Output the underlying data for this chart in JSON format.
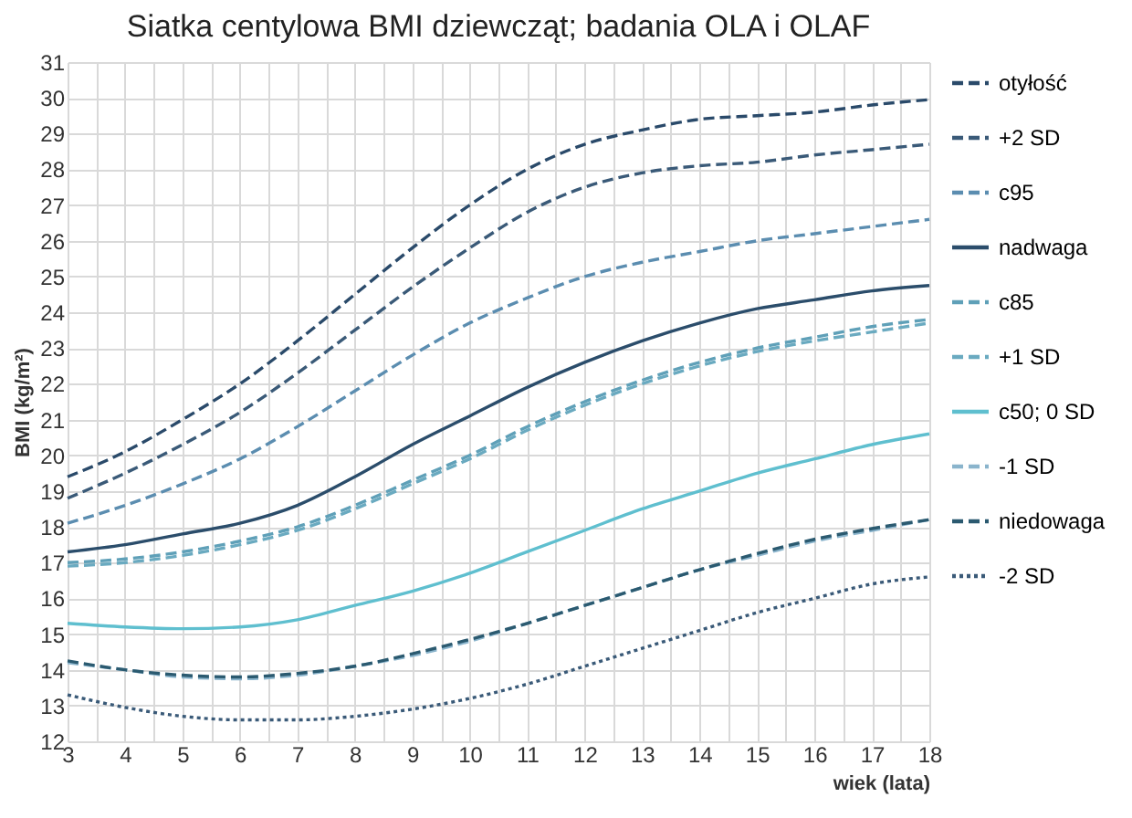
{
  "chart_data": {
    "type": "line",
    "title": "Siatka centylowa BMI dziewcząt; badania OLA i OLAF",
    "xlabel": "wiek (lata)",
    "ylabel": "BMI (kg/m²)",
    "x": [
      3,
      4,
      5,
      6,
      7,
      8,
      9,
      10,
      11,
      12,
      13,
      14,
      15,
      16,
      17,
      18
    ],
    "series": [
      {
        "name": "otyłość",
        "color": "#2a4a6a",
        "line_style": "dashed",
        "values": [
          19.4,
          20.1,
          21.0,
          22.0,
          23.2,
          24.5,
          25.8,
          27.0,
          28.0,
          28.7,
          29.1,
          29.4,
          29.5,
          29.6,
          29.8,
          29.95
        ]
      },
      {
        "name": "+2 SD",
        "color": "#3a5a78",
        "line_style": "dashed",
        "values": [
          18.8,
          19.5,
          20.3,
          21.2,
          22.3,
          23.5,
          24.7,
          25.8,
          26.8,
          27.5,
          27.9,
          28.1,
          28.2,
          28.4,
          28.55,
          28.7
        ]
      },
      {
        "name": "c95",
        "color": "#5b8db0",
        "line_style": "dashed",
        "values": [
          18.1,
          18.6,
          19.2,
          19.9,
          20.8,
          21.8,
          22.8,
          23.7,
          24.4,
          25.0,
          25.4,
          25.7,
          26.0,
          26.2,
          26.4,
          26.6
        ]
      },
      {
        "name": "nadwaga",
        "color": "#2b4d6b",
        "line_style": "solid",
        "values": [
          17.3,
          17.5,
          17.8,
          18.1,
          18.6,
          19.4,
          20.3,
          21.1,
          21.9,
          22.6,
          23.2,
          23.7,
          24.1,
          24.35,
          24.6,
          24.75
        ]
      },
      {
        "name": "c85",
        "color": "#5fa0b8",
        "line_style": "dashed",
        "values": [
          17.0,
          17.1,
          17.3,
          17.6,
          18.0,
          18.6,
          19.3,
          20.0,
          20.8,
          21.5,
          22.1,
          22.6,
          23.0,
          23.3,
          23.6,
          23.8
        ]
      },
      {
        "name": "+1 SD",
        "color": "#6aaac0",
        "line_style": "dashed",
        "values": [
          16.9,
          17.0,
          17.2,
          17.5,
          17.9,
          18.5,
          19.2,
          19.9,
          20.7,
          21.4,
          22.0,
          22.5,
          22.9,
          23.2,
          23.45,
          23.7
        ]
      },
      {
        "name": "c50; 0 SD",
        "color": "#5fbfcf",
        "line_style": "solid",
        "values": [
          15.3,
          15.2,
          15.15,
          15.2,
          15.4,
          15.8,
          16.2,
          16.7,
          17.3,
          17.9,
          18.5,
          19.0,
          19.5,
          19.9,
          20.3,
          20.6
        ]
      },
      {
        "name": "-1 SD",
        "color": "#8ab4cc",
        "line_style": "dashed",
        "values": [
          14.2,
          14.0,
          13.8,
          13.75,
          13.85,
          14.1,
          14.4,
          14.8,
          15.3,
          15.8,
          16.3,
          16.8,
          17.2,
          17.6,
          17.9,
          18.2
        ]
      },
      {
        "name": "niedowaga",
        "color": "#2b5a70",
        "line_style": "dashed",
        "values": [
          14.25,
          14.0,
          13.85,
          13.8,
          13.9,
          14.1,
          14.45,
          14.85,
          15.3,
          15.8,
          16.3,
          16.8,
          17.25,
          17.65,
          17.95,
          18.2
        ]
      },
      {
        "name": "-2 SD",
        "color": "#3a5a78",
        "line_style": "dotted",
        "values": [
          13.3,
          12.95,
          12.7,
          12.6,
          12.6,
          12.7,
          12.9,
          13.2,
          13.6,
          14.1,
          14.6,
          15.1,
          15.6,
          16.0,
          16.4,
          16.6
        ]
      }
    ],
    "xlim": [
      3,
      18
    ],
    "xticks": [
      3,
      {
        "value": 3.5,
        "label": null
      },
      4,
      {
        "value": 4.5,
        "label": null
      },
      5,
      {
        "value": 5.5,
        "label": null
      },
      6,
      {
        "value": 6.5,
        "label": null
      },
      7,
      {
        "value": 7.5,
        "label": null
      },
      8,
      {
        "value": 8.5,
        "label": null
      },
      9,
      {
        "value": 9.5,
        "label": null
      },
      10,
      {
        "value": 10.5,
        "label": null
      },
      11,
      {
        "value": 11.5,
        "label": null
      },
      12,
      {
        "value": 12.5,
        "label": null
      },
      13,
      {
        "value": 13.5,
        "label": null
      },
      14,
      {
        "value": 14.5,
        "label": null
      },
      15,
      {
        "value": 15.5,
        "label": null
      },
      16,
      {
        "value": 16.5,
        "label": null
      },
      17,
      {
        "value": 17.5,
        "label": null
      },
      18
    ],
    "ylim": [
      12,
      31
    ],
    "yticks": [
      12,
      13,
      14,
      15,
      16,
      17,
      18,
      19,
      20,
      21,
      22,
      23,
      24,
      25,
      26,
      27,
      28,
      29,
      30,
      31
    ],
    "grid": true,
    "legend": "right",
    "marker": "none"
  }
}
